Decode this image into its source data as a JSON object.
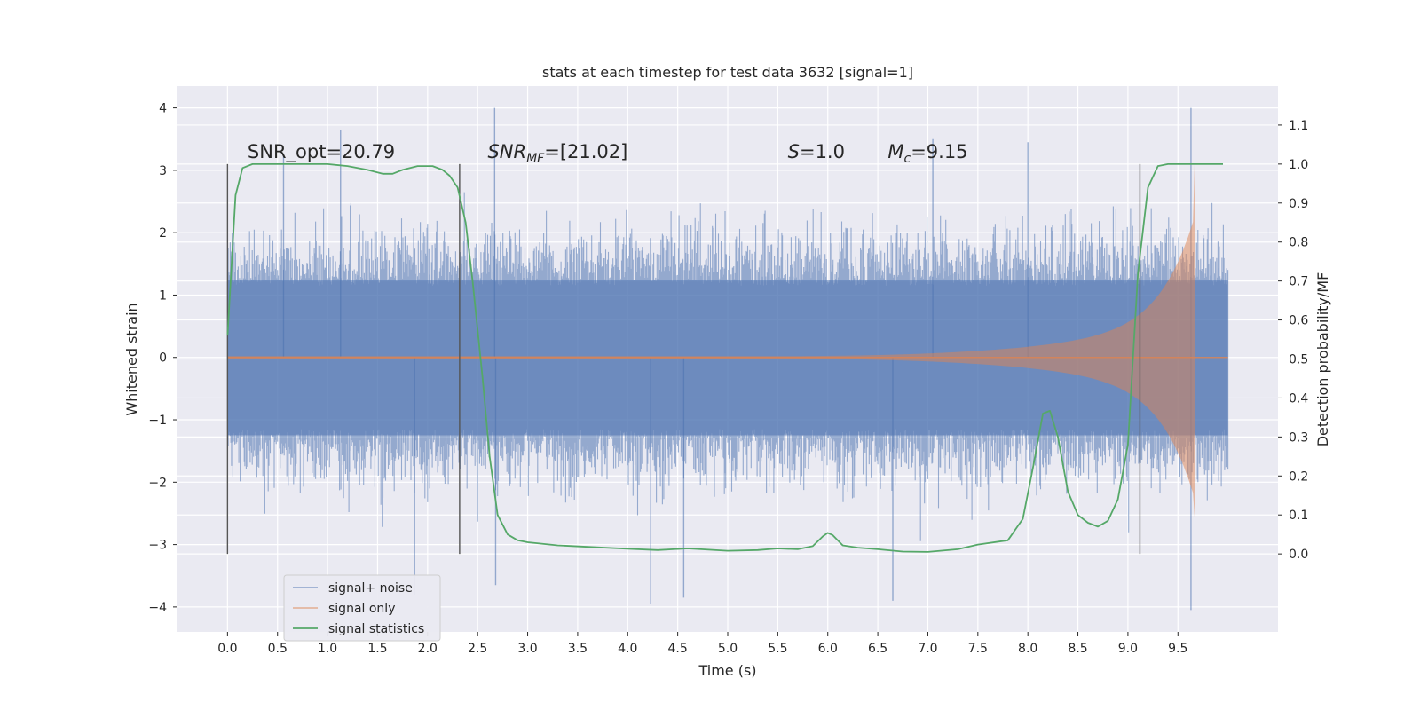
{
  "chart_data": {
    "type": "line",
    "title": "stats at each timestep for test data 3632 [signal=1]",
    "xlabel": "Time (s)",
    "ylabel": "Whitened strain",
    "ylabel_right": "Detection probability/MF",
    "xlim": [
      -0.5,
      10.5
    ],
    "ylim": [
      -4.4,
      4.35
    ],
    "ylim_right": [
      -0.2,
      1.2
    ],
    "x_ticks": [
      "0.0",
      "0.5",
      "1.0",
      "1.5",
      "2.0",
      "2.5",
      "3.0",
      "3.5",
      "4.0",
      "4.5",
      "5.0",
      "5.5",
      "6.0",
      "6.5",
      "7.0",
      "7.5",
      "8.0",
      "8.5",
      "9.0",
      "9.5"
    ],
    "y_ticks": [
      "4",
      "3",
      "2",
      "1",
      "0",
      "−1",
      "−2",
      "−3",
      "−4"
    ],
    "y_ticks_right": [
      "1.1",
      "1.0",
      "0.9",
      "0.8",
      "0.7",
      "0.6",
      "0.5",
      "0.4",
      "0.3",
      "0.2",
      "0.1",
      "0.0"
    ],
    "grid": true,
    "legend_placement": "lower-left",
    "annotations": [
      {
        "text": "SNR_opt=20.79",
        "x": 0.2,
        "y": 3.2
      },
      {
        "text": "SNR",
        "sub": "MF",
        "tail": "=[21.02]",
        "x": 2.6,
        "y": 3.2
      },
      {
        "text": "S",
        "tail": "=1.0",
        "x": 5.6,
        "y": 3.2
      },
      {
        "text": "M",
        "sub": "c",
        "tail": "=9.15",
        "x": 6.6,
        "y": 3.2
      }
    ],
    "vertical_lines": [
      0.0,
      2.32,
      9.12
    ],
    "series": [
      {
        "name": "signal+ noise",
        "color": "#4c72b0",
        "x_range": [
          0.0,
          10.0
        ],
        "envelope_upper": 2.4,
        "envelope_lower": -2.4,
        "max": 4.0,
        "min": -4.05
      },
      {
        "name": "signal only",
        "color": "#dd8452",
        "chirp_start": 5.0,
        "merger": 9.65,
        "peak": 3.3,
        "trough": -2.65
      },
      {
        "name": "signal statistics",
        "color": "#55a868",
        "axis": "right",
        "x": [
          0.0,
          0.08,
          0.15,
          0.25,
          0.4,
          0.6,
          0.8,
          1.0,
          1.2,
          1.4,
          1.55,
          1.65,
          1.75,
          1.9,
          2.05,
          2.15,
          2.22,
          2.3,
          2.38,
          2.45,
          2.55,
          2.62,
          2.7,
          2.8,
          2.9,
          3.0,
          3.3,
          3.6,
          4.0,
          4.3,
          4.6,
          5.0,
          5.3,
          5.5,
          5.7,
          5.85,
          5.95,
          6.0,
          6.05,
          6.15,
          6.3,
          6.5,
          6.75,
          7.0,
          7.3,
          7.5,
          7.8,
          7.95,
          8.05,
          8.15,
          8.22,
          8.3,
          8.4,
          8.5,
          8.6,
          8.7,
          8.8,
          8.9,
          9.0,
          9.1,
          9.2,
          9.3,
          9.4,
          9.5,
          9.65,
          9.95
        ],
        "y": [
          0.56,
          0.92,
          0.99,
          1.0,
          1.0,
          1.0,
          1.0,
          1.0,
          0.995,
          0.985,
          0.975,
          0.975,
          0.985,
          0.995,
          0.995,
          0.985,
          0.97,
          0.94,
          0.85,
          0.7,
          0.45,
          0.25,
          0.1,
          0.05,
          0.035,
          0.03,
          0.022,
          0.018,
          0.013,
          0.01,
          0.014,
          0.008,
          0.01,
          0.014,
          0.012,
          0.02,
          0.045,
          0.054,
          0.048,
          0.022,
          0.016,
          0.012,
          0.006,
          0.005,
          0.012,
          0.024,
          0.035,
          0.09,
          0.22,
          0.36,
          0.367,
          0.3,
          0.16,
          0.1,
          0.08,
          0.07,
          0.085,
          0.14,
          0.28,
          0.72,
          0.94,
          0.995,
          1.0,
          1.0,
          1.0,
          1.0
        ]
      }
    ]
  }
}
